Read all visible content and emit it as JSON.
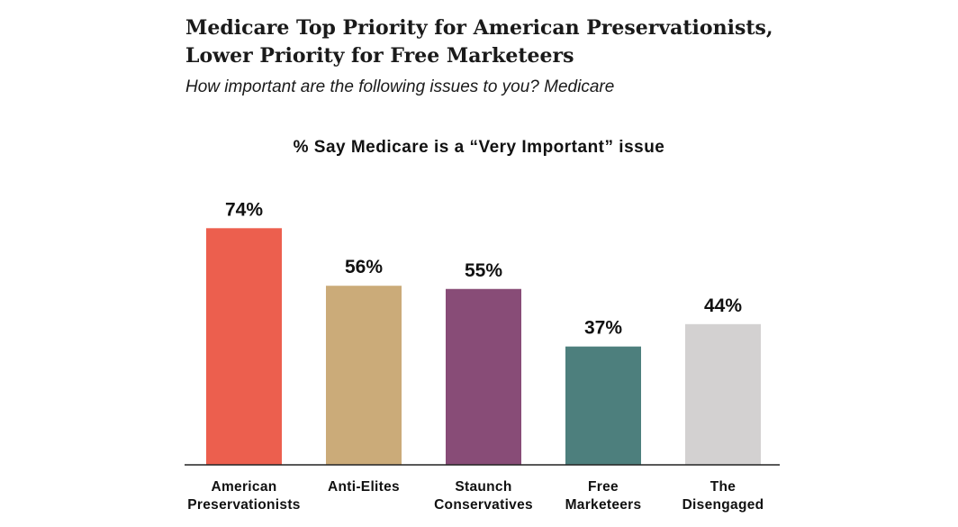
{
  "header": {
    "title_line1": "Medicare Top Priority for American Preservationists,",
    "title_line2": "Lower Priority for Free Marketeers",
    "subtitle": "How important are the following issues to you? Medicare"
  },
  "chart_data": {
    "type": "bar",
    "title": "% Say Medicare is a “Very Important” issue",
    "categories": [
      [
        "American",
        "Preservationists"
      ],
      [
        "Anti-Elites"
      ],
      [
        "Staunch",
        "Conservatives"
      ],
      [
        "Free",
        "Marketeers"
      ],
      [
        "The",
        "Disengaged"
      ]
    ],
    "values": [
      74,
      56,
      55,
      37,
      44
    ],
    "value_labels": [
      "74%",
      "56%",
      "55%",
      "37%",
      "44%"
    ],
    "colors": [
      "#ec5f4e",
      "#cbab79",
      "#884c77",
      "#4d7f7d",
      "#d3d1d1"
    ],
    "ylim": [
      0,
      100
    ],
    "grid": false,
    "legend": "none"
  }
}
